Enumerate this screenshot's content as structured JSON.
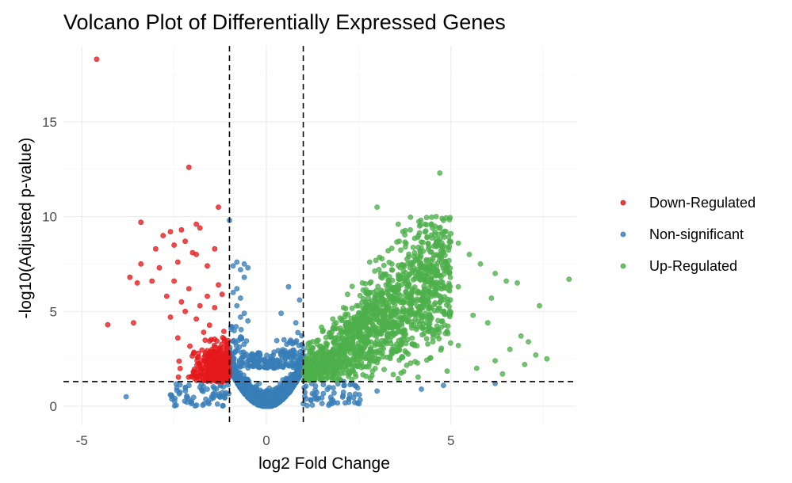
{
  "chart_data": {
    "type": "scatter",
    "title": "Volcano Plot of Differentially Expressed Genes",
    "xlabel": "log2 Fold Change",
    "ylabel": "-log10(Adjusted p-value)",
    "xlim": [
      -5.5,
      8.4
    ],
    "ylim": [
      -1.0,
      19.0
    ],
    "x_ticks": [
      -5,
      0,
      5
    ],
    "y_ticks": [
      0,
      5,
      10,
      15
    ],
    "grid": true,
    "legend_position": "right",
    "reference_lines": {
      "vertical": [
        -1,
        1
      ],
      "horizontal": [
        1.3
      ]
    },
    "series": [
      {
        "name": "Down-Regulated",
        "color": "#e41a1c",
        "points": [
          [
            -4.6,
            18.3
          ],
          [
            -2.1,
            12.6
          ],
          [
            -1.3,
            10.5
          ],
          [
            -3.4,
            9.7
          ],
          [
            -2.6,
            9.2
          ],
          [
            -2.8,
            9.0
          ],
          [
            -2.3,
            9.3
          ],
          [
            -1.9,
            9.6
          ],
          [
            -1.8,
            9.4
          ],
          [
            -2.0,
            8.1
          ],
          [
            -3.0,
            8.3
          ],
          [
            -2.5,
            8.5
          ],
          [
            -1.9,
            8.0
          ],
          [
            -1.4,
            8.3
          ],
          [
            -2.2,
            8.7
          ],
          [
            -3.4,
            7.5
          ],
          [
            -2.9,
            7.3
          ],
          [
            -1.6,
            7.4
          ],
          [
            -2.4,
            7.6
          ],
          [
            -3.7,
            6.8
          ],
          [
            -3.1,
            6.6
          ],
          [
            -2.5,
            6.6
          ],
          [
            -1.3,
            6.4
          ],
          [
            -2.1,
            6.2
          ],
          [
            -3.5,
            6.5
          ],
          [
            -2.7,
            5.8
          ],
          [
            -1.6,
            5.8
          ],
          [
            -1.2,
            5.9
          ],
          [
            -2.3,
            5.5
          ],
          [
            -1.8,
            5.3
          ],
          [
            -2.2,
            5.0
          ],
          [
            -1.4,
            5.2
          ],
          [
            -4.3,
            4.3
          ],
          [
            -3.6,
            4.4
          ],
          [
            -2.6,
            4.7
          ],
          [
            -1.9,
            4.6
          ],
          [
            -2.4,
            3.6
          ],
          [
            -1.7,
            3.9
          ]
        ]
      },
      {
        "name": "Non-significant",
        "color": "#377eb8",
        "points": [
          [
            -1.0,
            9.8
          ],
          [
            -0.6,
            7.5
          ],
          [
            -0.8,
            7.6
          ],
          [
            -0.9,
            7.4
          ],
          [
            -0.7,
            7.2
          ],
          [
            -0.5,
            7.3
          ],
          [
            -0.6,
            6.8
          ],
          [
            -0.8,
            6.2
          ],
          [
            -0.9,
            6.0
          ],
          [
            -0.7,
            5.7
          ],
          [
            0.6,
            6.3
          ],
          [
            0.9,
            5.6
          ],
          [
            0.4,
            4.9
          ],
          [
            0.8,
            4.4
          ],
          [
            -0.8,
            5.3
          ],
          [
            -0.6,
            4.9
          ],
          [
            -0.7,
            4.7
          ],
          [
            -0.5,
            4.5
          ],
          [
            -3.8,
            0.5
          ],
          [
            -2.6,
            0.6
          ],
          [
            -2.1,
            1.1
          ],
          [
            -1.6,
            0.9
          ],
          [
            -1.8,
            1.0
          ],
          [
            -1.4,
            0.7
          ],
          [
            1.3,
            0.6
          ],
          [
            1.7,
            1.0
          ],
          [
            2.1,
            1.3
          ],
          [
            2.4,
            1.1
          ],
          [
            3.0,
            0.8
          ],
          [
            4.2,
            0.9
          ],
          [
            4.8,
            1.1
          ],
          [
            6.2,
            1.2
          ]
        ]
      },
      {
        "name": "Up-Regulated",
        "color": "#4daf4a",
        "points": [
          [
            4.7,
            12.3
          ],
          [
            3.0,
            10.5
          ],
          [
            4.6,
            10.0
          ],
          [
            4.8,
            9.8
          ],
          [
            4.3,
            9.6
          ],
          [
            3.9,
            9.3
          ],
          [
            4.5,
            9.4
          ],
          [
            5.0,
            9.1
          ],
          [
            4.1,
            8.9
          ],
          [
            3.6,
            8.7
          ],
          [
            5.2,
            8.6
          ],
          [
            4.4,
            8.4
          ],
          [
            3.3,
            8.2
          ],
          [
            5.5,
            8.0
          ],
          [
            4.0,
            7.9
          ],
          [
            2.8,
            7.6
          ],
          [
            3.7,
            7.4
          ],
          [
            5.8,
            7.5
          ],
          [
            4.9,
            7.2
          ],
          [
            3.1,
            7.0
          ],
          [
            6.2,
            7.0
          ],
          [
            6.5,
            6.6
          ],
          [
            6.8,
            6.5
          ],
          [
            8.2,
            6.7
          ],
          [
            5.2,
            6.3
          ],
          [
            2.6,
            6.5
          ],
          [
            3.5,
            6.1
          ],
          [
            4.3,
            5.9
          ],
          [
            2.2,
            5.9
          ],
          [
            6.1,
            5.7
          ],
          [
            4.8,
            5.6
          ],
          [
            3.9,
            5.5
          ],
          [
            7.4,
            5.3
          ],
          [
            2.5,
            5.3
          ],
          [
            3.2,
            4.8
          ],
          [
            5.6,
            4.8
          ],
          [
            6.0,
            4.4
          ],
          [
            4.4,
            4.3
          ],
          [
            1.8,
            4.6
          ],
          [
            2.7,
            4.2
          ],
          [
            6.9,
            3.7
          ],
          [
            7.1,
            3.4
          ],
          [
            5.2,
            3.2
          ],
          [
            6.6,
            3.0
          ],
          [
            7.3,
            2.7
          ],
          [
            6.2,
            2.4
          ],
          [
            7.0,
            2.2
          ],
          [
            7.6,
            2.5
          ],
          [
            5.7,
            2.0
          ],
          [
            6.4,
            1.7
          ]
        ]
      }
    ]
  }
}
